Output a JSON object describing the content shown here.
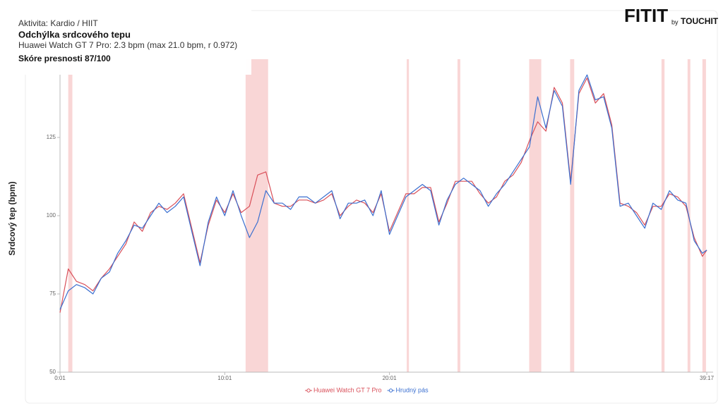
{
  "header": {
    "activity": "Aktivita: Kardio / HIIT",
    "title": "Odchýlka srdcového tepu",
    "subtitle": "Huawei Watch GT 7 Pro: 2.3 bpm  (max 21.0 bpm, r 0.972)",
    "score": "Skóre presnosti 87/100"
  },
  "logo": {
    "main": "FITIT",
    "by": "by",
    "brand": "TOUCHIT"
  },
  "chart_data": {
    "type": "line",
    "ylabel": "Srdcový tep (bpm)",
    "x": [
      1,
      31,
      61,
      91,
      121,
      151,
      181,
      211,
      241,
      271,
      301,
      331,
      361,
      391,
      421,
      451,
      481,
      511,
      541,
      571,
      601,
      631,
      661,
      691,
      721,
      751,
      781,
      811,
      841,
      871,
      901,
      931,
      961,
      991,
      1021,
      1051,
      1081,
      1111,
      1141,
      1171,
      1201,
      1231,
      1261,
      1291,
      1321,
      1351,
      1381,
      1411,
      1441,
      1471,
      1501,
      1531,
      1561,
      1591,
      1621,
      1651,
      1681,
      1711,
      1741,
      1771,
      1801,
      1831,
      1861,
      1891,
      1921,
      1951,
      1981,
      2011,
      2041,
      2071,
      2101,
      2131,
      2161,
      2191,
      2221,
      2251,
      2281,
      2311,
      2341,
      2357
    ],
    "series": [
      {
        "name": "Huawei Watch GT 7 Pro",
        "color": "#d9505a",
        "values": [
          69,
          83,
          79,
          78,
          76,
          80,
          83,
          87,
          91,
          98,
          95,
          101,
          103,
          102,
          104,
          107,
          96,
          85,
          97,
          105,
          101,
          107,
          101,
          103,
          113,
          114,
          104,
          103,
          103,
          105,
          105,
          104,
          105,
          107,
          100,
          103,
          105,
          104,
          101,
          107,
          95,
          101,
          107,
          107,
          109,
          109,
          98,
          104,
          111,
          111,
          111,
          107,
          104,
          106,
          111,
          113,
          117,
          124,
          130,
          127,
          141,
          136,
          111,
          139,
          144,
          136,
          139,
          129,
          104,
          103,
          101,
          97,
          103,
          103,
          107,
          106,
          103,
          93,
          87,
          89
        ]
      },
      {
        "name": "Hrudný pás",
        "color": "#3a6fd0",
        "values": [
          70,
          76,
          78,
          77,
          75,
          80,
          82,
          88,
          92,
          97,
          96,
          100,
          104,
          101,
          103,
          106,
          95,
          84,
          98,
          106,
          100,
          108,
          100,
          93,
          98,
          108,
          104,
          104,
          102,
          106,
          106,
          104,
          106,
          108,
          99,
          104,
          104,
          105,
          100,
          108,
          94,
          100,
          106,
          108,
          110,
          108,
          97,
          105,
          110,
          112,
          110,
          108,
          103,
          107,
          110,
          114,
          118,
          122,
          138,
          128,
          140,
          135,
          110,
          140,
          145,
          137,
          138,
          128,
          103,
          104,
          100,
          96,
          104,
          102,
          108,
          105,
          104,
          92,
          88,
          89
        ]
      }
    ],
    "highlight_ranges": [
      [
        31,
        46
      ],
      [
        677,
        759
      ],
      [
        1264,
        1272
      ],
      [
        1449,
        1459
      ],
      [
        1710,
        1754
      ],
      [
        1859,
        1874
      ],
      [
        2192,
        2203
      ],
      [
        2287,
        2297
      ],
      [
        2341,
        2354
      ]
    ],
    "highlight_color": "#f9d6d6",
    "xlim": [
      1,
      2380
    ],
    "xticks": [
      {
        "value": 1,
        "label": "0:01"
      },
      {
        "value": 601,
        "label": "10:01"
      },
      {
        "value": 1201,
        "label": "20:01"
      },
      {
        "value": 2357,
        "label": "39:17"
      }
    ],
    "ylim": [
      50,
      150
    ],
    "yticks": [
      50,
      75,
      100,
      125
    ]
  }
}
